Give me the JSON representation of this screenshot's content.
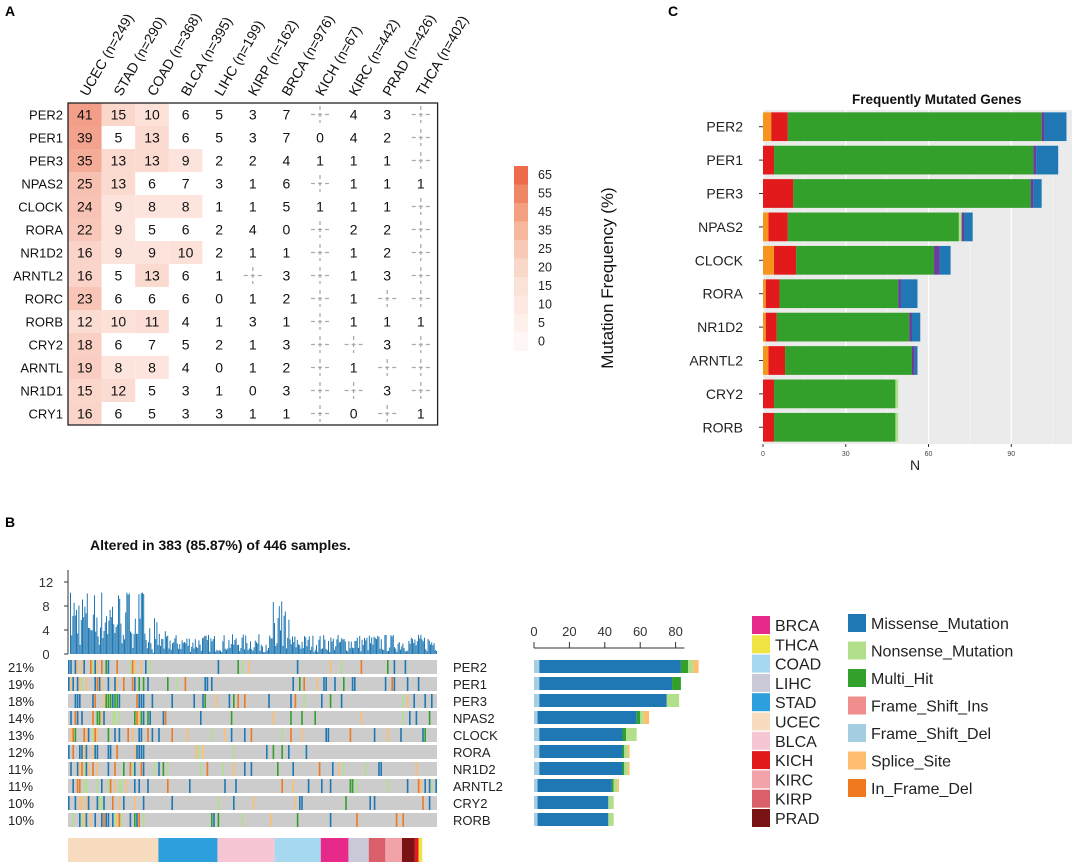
{
  "panels": {
    "a": "A",
    "b": "B",
    "c": "C"
  },
  "chart_data": [
    {
      "type": "heatmap",
      "columns": [
        "UCEC (n=249)",
        "STAD (n=290)",
        "COAD (n=368)",
        "BLCA (n=395)",
        "LIHC (n=199)",
        "KIRP (n=162)",
        "BRCA (n=976)",
        "KICH (n=67)",
        "KIRC (n=442)",
        "PRAD (n=426)",
        "THCA (n=402)"
      ],
      "rows": [
        "PER2",
        "PER1",
        "PER3",
        "NPAS2",
        "CLOCK",
        "RORA",
        "NR1D2",
        "ARNTL2",
        "RORC",
        "RORB",
        "CRY2",
        "ARNTL",
        "NR1D1",
        "CRY1"
      ],
      "values": [
        [
          41,
          15,
          10,
          6,
          5,
          3,
          7,
          null,
          4,
          3,
          null
        ],
        [
          39,
          5,
          13,
          6,
          5,
          3,
          7,
          0,
          4,
          2,
          null
        ],
        [
          35,
          13,
          13,
          9,
          2,
          2,
          4,
          1,
          1,
          1,
          null
        ],
        [
          25,
          13,
          6,
          7,
          3,
          1,
          6,
          null,
          1,
          1,
          1
        ],
        [
          24,
          9,
          8,
          8,
          1,
          1,
          5,
          1,
          1,
          1,
          null
        ],
        [
          22,
          9,
          5,
          6,
          2,
          4,
          0,
          null,
          2,
          2,
          null
        ],
        [
          16,
          9,
          9,
          10,
          2,
          1,
          1,
          null,
          1,
          2,
          null
        ],
        [
          16,
          5,
          13,
          6,
          1,
          null,
          3,
          null,
          1,
          3,
          null
        ],
        [
          23,
          6,
          6,
          6,
          0,
          1,
          2,
          null,
          1,
          null,
          null
        ],
        [
          12,
          10,
          11,
          4,
          1,
          3,
          1,
          null,
          1,
          1,
          1
        ],
        [
          18,
          6,
          7,
          5,
          2,
          1,
          3,
          null,
          null,
          3,
          null
        ],
        [
          19,
          8,
          8,
          4,
          0,
          1,
          2,
          null,
          1,
          null,
          null
        ],
        [
          15,
          12,
          5,
          3,
          1,
          0,
          3,
          null,
          null,
          3,
          null
        ],
        [
          16,
          6,
          5,
          3,
          3,
          1,
          1,
          null,
          0,
          null,
          1
        ]
      ],
      "legend_title": "Mutation Frequency (%)",
      "legend_ticks": [
        "65",
        "55",
        "45",
        "35",
        "25",
        "20",
        "15",
        "10",
        "5",
        "0"
      ],
      "legend_colors": [
        "#eb6b4a",
        "#ef8666",
        "#f2a07f",
        "#f5b79d",
        "#f8cab5",
        "#fad8c9",
        "#fbe2d6",
        "#fde9e1",
        "#fef0eb",
        "#fff7f5"
      ]
    },
    {
      "type": "bar",
      "title": "Frequently Mutated Genes",
      "orientation": "horizontal",
      "xlabel": "N",
      "xticks": [
        "0",
        "30",
        "60",
        "90"
      ],
      "xlim": [
        0,
        112
      ],
      "categories": [
        "PER2",
        "PER1",
        "PER3",
        "NPAS2",
        "CLOCK",
        "RORA",
        "NR1D2",
        "ARNTL2",
        "CRY2",
        "RORB"
      ],
      "series": [
        {
          "name": "Splice_Site",
          "color": "#f7941d",
          "values": [
            3,
            0,
            0,
            2,
            4,
            1,
            1,
            2,
            0,
            0
          ]
        },
        {
          "name": "Frame_Shift_Del",
          "color": "#e31a1c",
          "values": [
            6,
            4,
            11,
            7,
            8,
            5,
            4,
            6,
            4,
            4
          ]
        },
        {
          "name": "Multi_Hit",
          "color": "#33a02c",
          "values": [
            92,
            94,
            86,
            62,
            50,
            43,
            48,
            46,
            44,
            44
          ]
        },
        {
          "name": "Nonsense_Mutation",
          "color": "#b2df8a",
          "values": [
            0,
            0,
            0,
            1,
            0,
            0,
            0,
            0,
            1,
            1
          ]
        },
        {
          "name": "Frame_Shift_Ins",
          "color": "#6a3d9a",
          "values": [
            1,
            1,
            1,
            1,
            2,
            1,
            1,
            1,
            0,
            0
          ]
        },
        {
          "name": "Missense_Mutation",
          "color": "#1f78b4",
          "values": [
            8,
            8,
            3,
            3,
            4,
            6,
            3,
            1,
            0,
            0
          ]
        }
      ]
    },
    {
      "type": "bar",
      "title": "Altered in 383 (85.87%) of 446 samples.",
      "genes": [
        "PER2",
        "PER1",
        "PER3",
        "NPAS2",
        "CLOCK",
        "RORA",
        "NR1D2",
        "ARNTL2",
        "CRY2",
        "RORB"
      ],
      "percents": [
        "21%",
        "19%",
        "18%",
        "14%",
        "13%",
        "12%",
        "11%",
        "11%",
        "10%",
        "10%"
      ],
      "tmb_yticks": [
        "12",
        "8",
        "4",
        "0"
      ],
      "bar_xticks": [
        "0",
        "20",
        "40",
        "60",
        "80"
      ],
      "bar_xlim": [
        0,
        90
      ],
      "bar_series": [
        {
          "name": "Frame_Shift_Del",
          "color": "#a6cee3",
          "values": [
            3,
            3,
            3,
            2,
            3,
            3,
            3,
            2,
            2,
            2
          ]
        },
        {
          "name": "Missense_Mutation",
          "color": "#1f78b4",
          "values": [
            80,
            75,
            72,
            56,
            47,
            47,
            47,
            42,
            40,
            40
          ]
        },
        {
          "name": "Multi_Hit",
          "color": "#33a02c",
          "values": [
            4,
            5,
            0,
            2,
            2,
            1,
            1,
            1,
            0,
            0
          ]
        },
        {
          "name": "Nonsense_Mutation",
          "color": "#b2df8a",
          "values": [
            3,
            0,
            7,
            2,
            6,
            2,
            2,
            2,
            3,
            3
          ]
        },
        {
          "name": "Splice_Site",
          "color": "#fdbf6f",
          "values": [
            3,
            0,
            0,
            3,
            0,
            1,
            1,
            1,
            0,
            0
          ]
        }
      ],
      "cancer_legend": [
        {
          "label": "BRCA",
          "color": "#e7298a"
        },
        {
          "label": "THCA",
          "color": "#f0e442"
        },
        {
          "label": "COAD",
          "color": "#a6d8f0"
        },
        {
          "label": "LIHC",
          "color": "#c9c9d8"
        },
        {
          "label": "STAD",
          "color": "#2c9fdc"
        },
        {
          "label": "UCEC",
          "color": "#f8dcc0"
        },
        {
          "label": "BLCA",
          "color": "#f7c6d4"
        },
        {
          "label": "KICH",
          "color": "#e31a1c"
        },
        {
          "label": "KIRC",
          "color": "#f2a3aa"
        },
        {
          "label": "KIRP",
          "color": "#d95f6a"
        },
        {
          "label": "PRAD",
          "color": "#7a1414"
        }
      ],
      "variant_legend": [
        {
          "label": "Missense_Mutation",
          "color": "#1f78b4"
        },
        {
          "label": "Nonsense_Mutation",
          "color": "#b2df8a"
        },
        {
          "label": "Multi_Hit",
          "color": "#33a02c"
        },
        {
          "label": "Frame_Shift_Ins",
          "color": "#f08e8e"
        },
        {
          "label": "Frame_Shift_Del",
          "color": "#a6cee3"
        },
        {
          "label": "Splice_Site",
          "color": "#fdbf6f"
        },
        {
          "label": "In_Frame_Del",
          "color": "#f0781e"
        }
      ],
      "cohort_strip": [
        {
          "label": "UCEC",
          "color": "#f8dcc0",
          "share": 0.245
        },
        {
          "label": "STAD",
          "color": "#2c9fdc",
          "share": 0.16
        },
        {
          "label": "BLCA",
          "color": "#f7c6d4",
          "share": 0.155
        },
        {
          "label": "COAD",
          "color": "#a6d8f0",
          "share": 0.125
        },
        {
          "label": "BRCA",
          "color": "#e7298a",
          "share": 0.075
        },
        {
          "label": "LIHC",
          "color": "#c9c9d8",
          "share": 0.055
        },
        {
          "label": "KIRC",
          "color": "#d95f6a",
          "share": 0.045
        },
        {
          "label": "KIRP",
          "color": "#f2a3aa",
          "share": 0.045
        },
        {
          "label": "PRAD",
          "color": "#7a1414",
          "share": 0.035
        },
        {
          "label": "KICH",
          "color": "#e31a1c",
          "share": 0.01
        },
        {
          "label": "THCA",
          "color": "#f0e442",
          "share": 0.01
        }
      ]
    }
  ]
}
